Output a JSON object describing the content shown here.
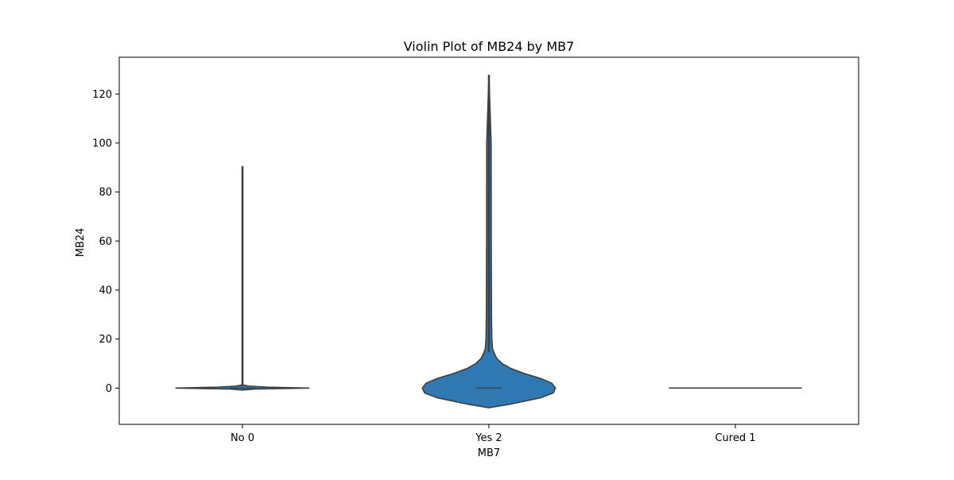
{
  "chart_data": {
    "type": "violin",
    "title": "Violin Plot of MB24 by MB7",
    "xlabel": "MB7",
    "ylabel": "MB24",
    "categories": [
      "No 0",
      "Yes 2",
      "Cured 1"
    ],
    "ylim": [
      -14.8,
      135
    ],
    "yticks": [
      0,
      20,
      40,
      60,
      80,
      100,
      120
    ],
    "ytick_labels": [
      "0",
      "20",
      "40",
      "60",
      "80",
      "100",
      "120"
    ],
    "grid": false,
    "legend": "none",
    "fill_color": "#2f78b1",
    "line_color": "#3f3f3f",
    "violins": [
      {
        "category": "No 0",
        "min": -0.8,
        "max": 90.2,
        "median": 0,
        "profile": [
          {
            "y": -0.8,
            "w": 0.0
          },
          {
            "y": -0.4,
            "w": 0.14
          },
          {
            "y": 0.0,
            "w": 0.8
          },
          {
            "y": 0.4,
            "w": 0.3
          },
          {
            "y": 0.8,
            "w": 0.08
          },
          {
            "y": 1.3,
            "w": 0.0
          }
        ],
        "whisker": [
          1.3,
          90.2
        ]
      },
      {
        "category": "Yes 2",
        "min": -8.0,
        "max": 127.5,
        "median": 0,
        "profile": [
          {
            "y": -8.0,
            "w": 0.0
          },
          {
            "y": -6.5,
            "w": 0.03
          },
          {
            "y": -4.0,
            "w": 0.07
          },
          {
            "y": -2.0,
            "w": 0.088
          },
          {
            "y": 0.0,
            "w": 0.091
          },
          {
            "y": 2.0,
            "w": 0.086
          },
          {
            "y": 4.0,
            "w": 0.07
          },
          {
            "y": 6.0,
            "w": 0.048
          },
          {
            "y": 8.0,
            "w": 0.03
          },
          {
            "y": 10.0,
            "w": 0.018
          },
          {
            "y": 12.0,
            "w": 0.011
          },
          {
            "y": 14.0,
            "w": 0.0075
          },
          {
            "y": 16.0,
            "w": 0.005
          },
          {
            "y": 20.0,
            "w": 0.004
          },
          {
            "y": 30.0,
            "w": 0.0035
          },
          {
            "y": 60.0,
            "w": 0.0032
          },
          {
            "y": 100.0,
            "w": 0.003
          },
          {
            "y": 127.5,
            "w": 0.0
          }
        ],
        "whisker": [
          15.0,
          127.5
        ]
      },
      {
        "category": "Cured 1",
        "min": 0,
        "max": 0,
        "median": 0,
        "profile": [],
        "whisker": []
      }
    ]
  }
}
